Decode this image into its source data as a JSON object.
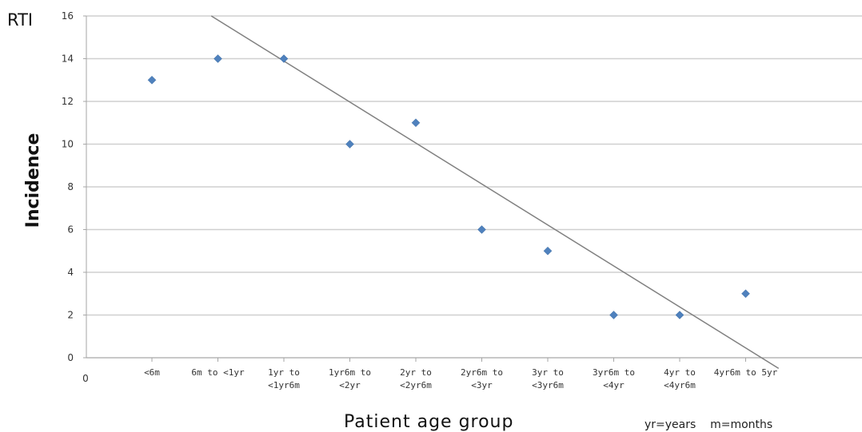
{
  "chart_data": {
    "type": "scatter",
    "ylabel": "Incidence",
    "xlabel": "Patient age group",
    "corner_label": "RTI",
    "note": "yr=years    m=months",
    "x_origin_label": "0",
    "ylim": [
      0,
      16
    ],
    "yticks": [
      0,
      2,
      4,
      6,
      8,
      10,
      12,
      14,
      16
    ],
    "grid": true,
    "categories": [
      [
        "<6m"
      ],
      [
        "6m to <1yr"
      ],
      [
        "1yr to",
        "<1yr6m"
      ],
      [
        "1yr6m to",
        "<2yr"
      ],
      [
        "2yr to",
        "<2yr6m"
      ],
      [
        "2yr6m to",
        "<3yr"
      ],
      [
        "3yr to",
        "<3yr6m"
      ],
      [
        "3yr6m to",
        "<4yr"
      ],
      [
        "4yr to",
        "<4yr6m"
      ],
      [
        "4yr6m to 5yr"
      ]
    ],
    "series": [
      {
        "values": [
          13,
          14,
          14,
          10,
          11,
          6,
          5,
          2,
          2,
          3
        ],
        "color": "#4f81bd"
      }
    ],
    "trendline": {
      "from": [
        0.9,
        16
      ],
      "to": [
        9.5,
        -0.5
      ],
      "color": "#808080"
    }
  }
}
